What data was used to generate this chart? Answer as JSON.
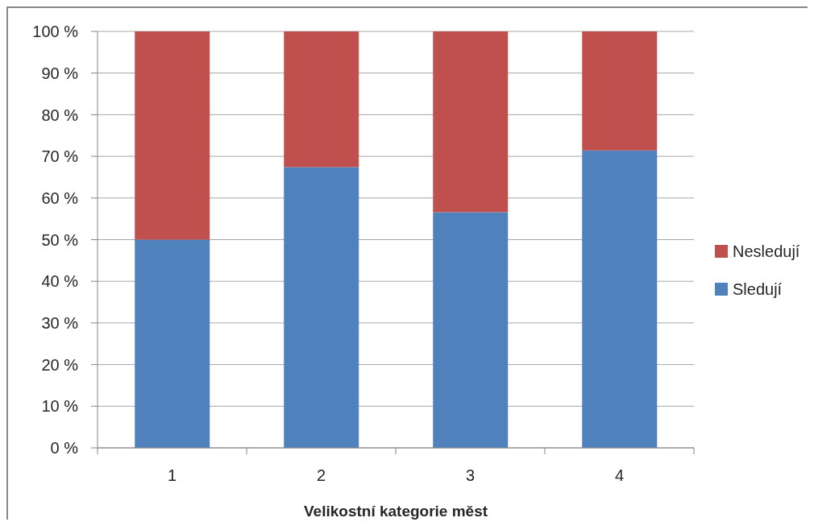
{
  "chart_data": {
    "type": "bar",
    "stacked": true,
    "categories": [
      "1",
      "2",
      "3",
      "4"
    ],
    "series": [
      {
        "name": "Sledují",
        "color": "#4f81bd",
        "values": [
          50,
          67.4,
          56.6,
          71.4
        ]
      },
      {
        "name": "Nesledují",
        "color": "#c0504d",
        "values": [
          50,
          32.6,
          43.4,
          28.6
        ]
      }
    ],
    "xlabel": "Velikostní kategorie měst",
    "ylim": [
      0,
      100
    ],
    "yticks": [
      {
        "value": 0,
        "label": "0 %"
      },
      {
        "value": 10,
        "label": "10 %"
      },
      {
        "value": 20,
        "label": "20 %"
      },
      {
        "value": 30,
        "label": "30 %"
      },
      {
        "value": 40,
        "label": "40 %"
      },
      {
        "value": 50,
        "label": "50 %"
      },
      {
        "value": 60,
        "label": "60 %"
      },
      {
        "value": 70,
        "label": "70 %"
      },
      {
        "value": 80,
        "label": "80 %"
      },
      {
        "value": 90,
        "label": "90 %"
      },
      {
        "value": 100,
        "label": "100 %"
      }
    ],
    "grid": "y",
    "legend": "right"
  }
}
